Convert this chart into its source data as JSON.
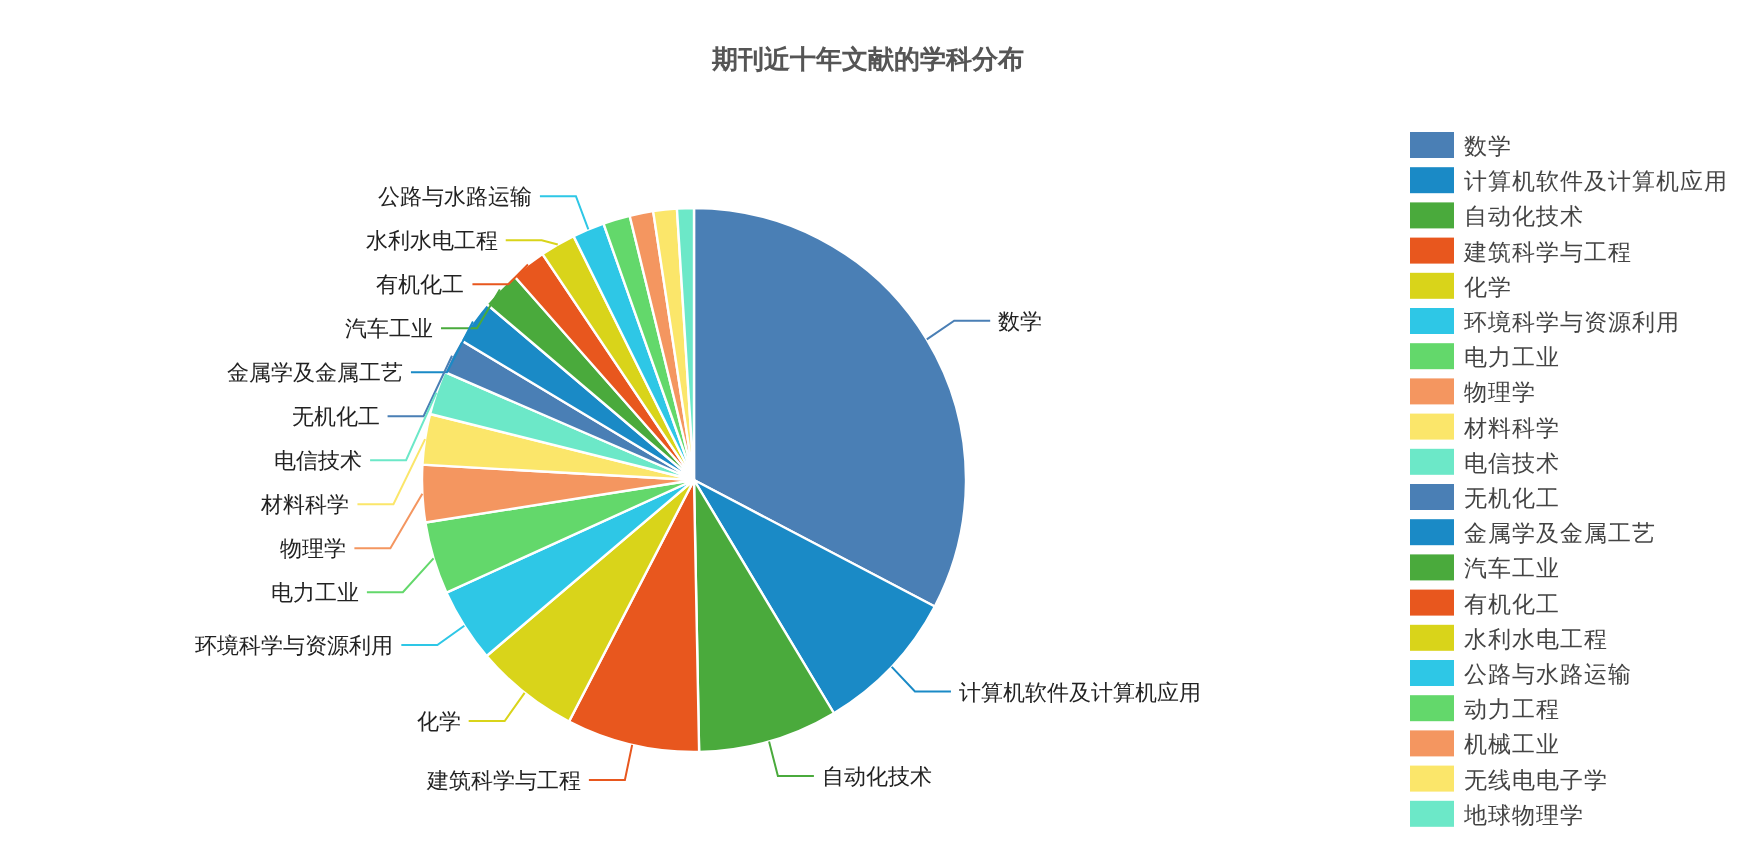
{
  "chart_data": {
    "type": "pie",
    "title": "期刊近十年文献的学科分布",
    "legend": "right",
    "categories": [
      "数学",
      "计算机软件及计算机应用",
      "自动化技术",
      "建筑科学与工程",
      "化学",
      "环境科学与资源利用",
      "电力工业",
      "物理学",
      "材料科学",
      "电信技术",
      "无机化工",
      "金属学及金属工艺",
      "汽车工业",
      "有机化工",
      "水利水电工程",
      "公路与水路运输",
      "动力工程",
      "机械工业",
      "无线电电子学",
      "地球物理学"
    ],
    "values": [
      32.7,
      8.7,
      8.3,
      7.9,
      6.2,
      4.4,
      4.3,
      3.4,
      3.0,
      2.6,
      2.1,
      2.6,
      2.3,
      2.1,
      2.1,
      1.9,
      1.6,
      1.4,
      1.4,
      1.0
    ],
    "colors": [
      "#4a7fb5",
      "#1a8ac6",
      "#4aaa3c",
      "#e8571e",
      "#d9d41a",
      "#2ec7e6",
      "#63d86b",
      "#f49660",
      "#fbe66a",
      "#6ce8c8",
      "#4a7fb5",
      "#1a8ac6",
      "#4aaa3c",
      "#e8571e",
      "#d9d41a",
      "#2ec7e6",
      "#63d86b",
      "#f49660",
      "#fbe66a",
      "#6ce8c8"
    ]
  }
}
